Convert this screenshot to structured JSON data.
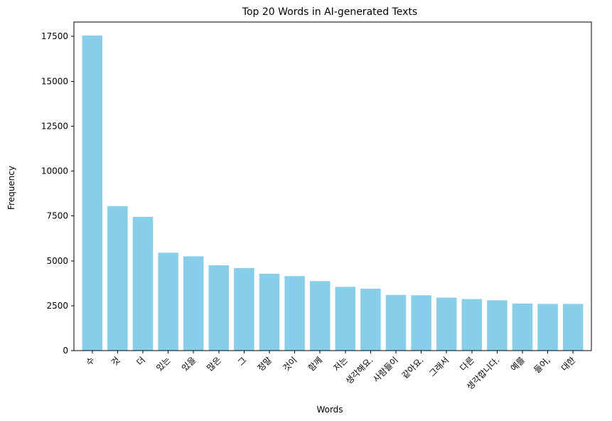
{
  "chart_data": {
    "type": "bar",
    "title": "Top 20 Words in AI-generated Texts",
    "xlabel": "Words",
    "ylabel": "Frequency",
    "categories": [
      "수",
      "것",
      "더",
      "있는",
      "있을",
      "많은",
      "그",
      "정말",
      "것이",
      "함께",
      "저는",
      "생각해요.",
      "사람들이",
      "같아요.",
      "그래서",
      "다른",
      "생각합니다.",
      "예를",
      "들어,",
      "대한"
    ],
    "values": [
      17550,
      8050,
      7450,
      5450,
      5250,
      4750,
      4600,
      4280,
      4150,
      3870,
      3550,
      3450,
      3100,
      3080,
      2950,
      2870,
      2800,
      2620,
      2600,
      2600
    ],
    "ylim": [
      0,
      18300
    ],
    "yticks": [
      0,
      2500,
      5000,
      7500,
      10000,
      12500,
      15000,
      17500
    ],
    "ytick_labels": [
      "0",
      "2500",
      "5000",
      "7500",
      "10000",
      "12500",
      "15000",
      "17500"
    ],
    "bar_color": "#87ceeb",
    "grid": false,
    "legend": null
  }
}
